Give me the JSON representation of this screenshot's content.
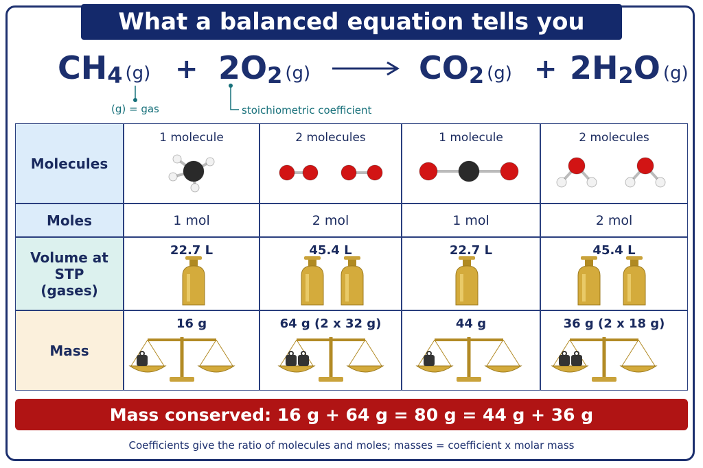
{
  "title": "What a balanced equation tells you",
  "equation": {
    "plus": "+",
    "species": [
      {
        "formula": [
          "CH",
          "4"
        ],
        "state": "(g)"
      },
      {
        "coefficient": "2",
        "formula": [
          "O",
          "2"
        ],
        "state": "(g)"
      },
      {
        "formula": [
          "CO",
          "2"
        ],
        "state": "(g)"
      },
      {
        "coefficient": "2",
        "formula": [
          "H",
          "2",
          "O"
        ],
        "state": "(g)"
      }
    ],
    "annotations": [
      "(g) = gas",
      "stoichiometric coefficient"
    ]
  },
  "table": {
    "row_labels": [
      [
        "Molecules"
      ],
      [
        "Moles"
      ],
      [
        "Volume at STP",
        "(gases)"
      ],
      [
        "Mass"
      ]
    ],
    "rows": [
      [
        "1 molecule",
        "2 molecules",
        "1 molecule",
        "2 molecules"
      ],
      [
        "1 mol",
        "2 mol",
        "1 mol",
        "2 mol"
      ],
      [
        "22.7 L",
        "45.4 L",
        "22.7 L",
        "45.4 L"
      ],
      [
        "16 g",
        "64 g (2 x 32 g)",
        "44 g",
        "36 g (2 x 18 g)"
      ]
    ]
  },
  "banner": "Mass conserved: 16 g + 64 g = 80 g = 44 g + 36 g",
  "note": "Coefficients give the ratio of molecules and moles; masses = coefficient x molar mass"
}
